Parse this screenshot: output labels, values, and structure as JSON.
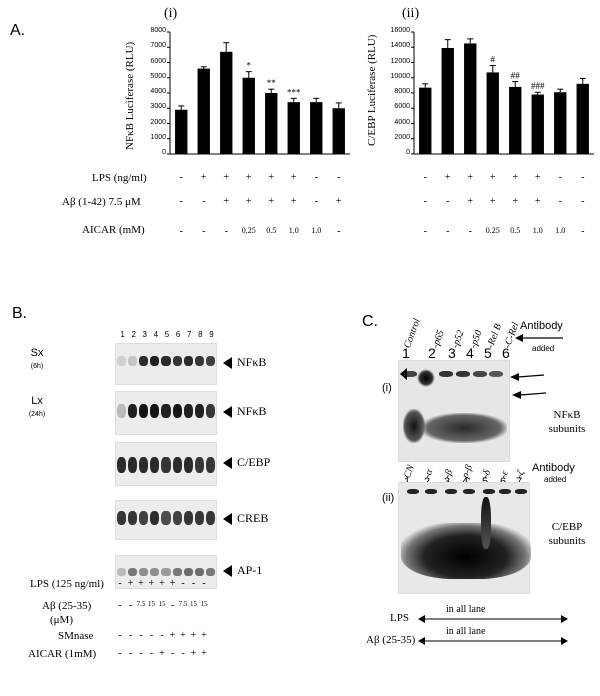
{
  "panelA": {
    "label": "A.",
    "chart_data": [
      {
        "type": "bar",
        "panel": "(i)",
        "ylabel": "NFκB Luciferase (RLU)",
        "ylim": [
          0,
          8000
        ],
        "yticks": [
          "8000",
          "7000",
          "6000",
          "5000",
          "4000",
          "3000",
          "2000",
          "1000",
          "0"
        ],
        "values": [
          2900,
          5600,
          6700,
          5000,
          4000,
          3400,
          3400,
          3000
        ],
        "errors": [
          250,
          120,
          600,
          400,
          250,
          250,
          250,
          350
        ],
        "annotations": [
          "",
          "",
          "",
          "*",
          "**",
          "***",
          "",
          ""
        ],
        "grid": false
      },
      {
        "type": "bar",
        "panel": "(ii)",
        "ylabel": "C/EBP Luciferase (RLU)",
        "ylim": [
          0,
          16000
        ],
        "yticks": [
          "16000",
          "14000",
          "12000",
          "10000",
          "8000",
          "6000",
          "4000",
          "2000",
          "0"
        ],
        "values": [
          8700,
          13900,
          14500,
          10700,
          8800,
          7800,
          8100,
          9200
        ],
        "errors": [
          500,
          1100,
          600,
          900,
          700,
          300,
          400,
          700
        ],
        "annotations": [
          "",
          "",
          "",
          "#",
          "##",
          "###",
          "",
          ""
        ],
        "grid": false
      }
    ],
    "table": {
      "rows": [
        {
          "label": "LPS (ng/ml)",
          "left": [
            "-",
            "+",
            "+",
            "+",
            "+",
            "+",
            "-",
            "-"
          ],
          "right": [
            "-",
            "+",
            "+",
            "+",
            "+",
            "+",
            "-",
            "-"
          ]
        },
        {
          "label": "Aβ (1-42) 7.5 μM",
          "left": [
            "-",
            "-",
            "+",
            "+",
            "+",
            "+",
            "-",
            "+"
          ],
          "right": [
            "-",
            "-",
            "+",
            "+",
            "+",
            "+",
            "-",
            "-"
          ]
        },
        {
          "label": "AICAR (mM)",
          "left": [
            "-",
            "-",
            "-",
            "0.25",
            "0.5",
            "1.0",
            "1.0",
            "-"
          ],
          "right": [
            "-",
            "-",
            "-",
            "0.25",
            "0.5",
            "1.0",
            "1.0",
            "-"
          ]
        }
      ]
    }
  },
  "panelB": {
    "label": "B.",
    "lanes": [
      "1",
      "2",
      "3",
      "4",
      "5",
      "6",
      "7",
      "8",
      "9"
    ],
    "blots": [
      {
        "side": "Sx",
        "sub": "(6h)",
        "label": "NFκB"
      },
      {
        "side": "Lx",
        "sub": "(24h)",
        "label": "NFκB"
      },
      {
        "side": "",
        "sub": "",
        "label": "C/EBP"
      },
      {
        "side": "",
        "sub": "",
        "label": "CREB"
      },
      {
        "side": "",
        "sub": "",
        "label": "AP-1"
      }
    ],
    "table": {
      "rows": [
        {
          "label": "LPS (125 ng/ml)",
          "cells": [
            "-",
            "+",
            "+",
            "+",
            "+",
            "+",
            "-",
            "-",
            "-"
          ]
        },
        {
          "label": "Aβ (25-35)",
          "label2": "(μM)",
          "cells": [
            "-",
            "-",
            "7.5",
            "15",
            "15",
            "-",
            "7.5",
            "15",
            "15"
          ]
        },
        {
          "label": "SMnase",
          "cells": [
            "-",
            "-",
            "-",
            "-",
            "-",
            "+",
            "+",
            "+",
            "+"
          ]
        },
        {
          "label": "AICAR (1mM)",
          "cells": [
            "-",
            "-",
            "-",
            "-",
            "+",
            "-",
            "-",
            "+",
            "+"
          ]
        }
      ]
    }
  },
  "panelC": {
    "label": "C.",
    "antibody_label": "Antibody",
    "added_label": "added",
    "i": {
      "label": "(i)",
      "lane_labels": [
        "Control",
        "-p65",
        "-p52",
        "-p50",
        "-Rel B",
        "-C-Rel"
      ],
      "lane_numbers": [
        "1",
        "2",
        "3",
        "4",
        "5",
        "6"
      ],
      "side_label1": "NFκB",
      "side_label2": "subunits"
    },
    "ii": {
      "label": "(ii)",
      "lane_labels": [
        "CN",
        "-α",
        "-β",
        "p-β",
        "-δ",
        "-ε",
        "-ζ"
      ],
      "lane_numbers": [
        "1",
        "2",
        "3",
        "4",
        "5",
        "6",
        "7"
      ],
      "side_label1": "C/EBP",
      "side_label2": "subunits"
    },
    "bottom": [
      {
        "label": "LPS",
        "text": "in all lane"
      },
      {
        "label": "Aβ (25-35)",
        "text": "in all lane"
      }
    ]
  }
}
